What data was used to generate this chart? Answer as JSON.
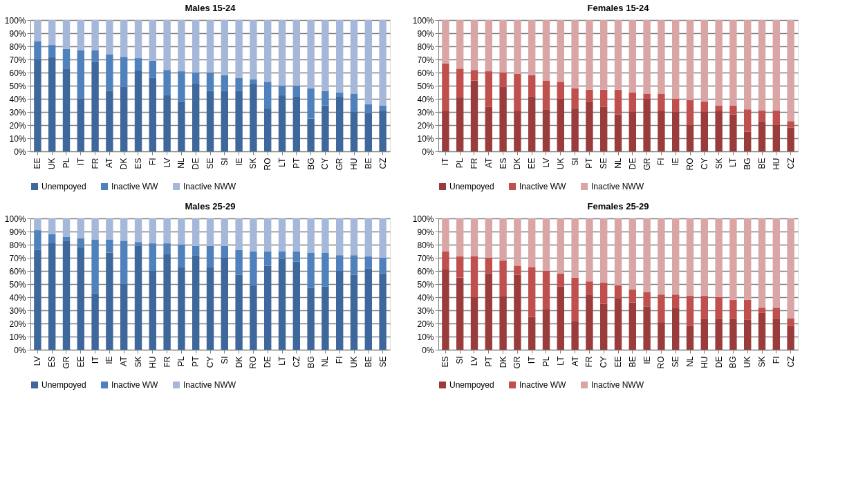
{
  "chart_data": [
    {
      "type": "bar",
      "stacked": true,
      "title": "Males 15-24",
      "categories": [
        "EE",
        "UK",
        "PL",
        "IT",
        "FR",
        "AT",
        "DK",
        "ES",
        "FI",
        "LV",
        "NL",
        "DE",
        "SE",
        "SI",
        "IE",
        "SK",
        "RO",
        "LT",
        "PT",
        "BG",
        "CY",
        "GR",
        "HU",
        "BE",
        "CZ"
      ],
      "series": [
        {
          "name": "Unempoyed",
          "color": "#3e679b",
          "values": [
            70,
            72,
            63,
            40,
            68,
            46,
            49,
            62,
            56,
            43,
            38,
            52,
            46,
            46,
            46,
            52,
            33,
            43,
            42,
            25,
            35,
            42,
            30,
            29,
            31
          ]
        },
        {
          "name": "Inactive WW",
          "color": "#4f81bd",
          "values": [
            14,
            9,
            15,
            37,
            9,
            28,
            23,
            9,
            13,
            19,
            23,
            8,
            14,
            12,
            10,
            3,
            20,
            7,
            8,
            23,
            11,
            3,
            14,
            7,
            4
          ]
        },
        {
          "name": "Inactive NWW",
          "color": "#a6b8d9",
          "values": [
            16,
            19,
            22,
            23,
            23,
            26,
            28,
            29,
            31,
            38,
            39,
            40,
            40,
            42,
            44,
            45,
            47,
            50,
            50,
            52,
            54,
            55,
            56,
            64,
            65
          ]
        }
      ],
      "ylim": [
        0,
        100
      ],
      "yticks": [
        {
          "value": 0,
          "label": "0%"
        },
        {
          "value": 10,
          "label": "10%"
        },
        {
          "value": 20,
          "label": "20%"
        },
        {
          "value": 30,
          "label": "30%"
        },
        {
          "value": 40,
          "label": "40%"
        },
        {
          "value": 50,
          "label": "50%"
        },
        {
          "value": 60,
          "label": "60%"
        },
        {
          "value": 70,
          "label": "70%"
        },
        {
          "value": 80,
          "label": "80%"
        },
        {
          "value": 90,
          "label": "90%"
        },
        {
          "value": 100,
          "label": "100%"
        }
      ],
      "grid": "y",
      "legend": "bottom"
    },
    {
      "type": "bar",
      "stacked": true,
      "title": "Females 15-24",
      "categories": [
        "IT",
        "PL",
        "FR",
        "AT",
        "ES",
        "DK",
        "EE",
        "LV",
        "UK",
        "SI",
        "PT",
        "SE",
        "NL",
        "DE",
        "GR",
        "FI",
        "IE",
        "RO",
        "CY",
        "SK",
        "LT",
        "BG",
        "BE",
        "HU",
        "CZ"
      ],
      "series": [
        {
          "name": "Unempoyed",
          "color": "#9b3c3c",
          "values": [
            31,
            41,
            54,
            34,
            49,
            31,
            42,
            32,
            40,
            33,
            38,
            34,
            28,
            30,
            40,
            31,
            30,
            20,
            30,
            31,
            28,
            15,
            23,
            20,
            18
          ]
        },
        {
          "name": "Inactive WW",
          "color": "#c0504d",
          "values": [
            36,
            22,
            8,
            27,
            11,
            28,
            16,
            22,
            13,
            15,
            9,
            13,
            19,
            15,
            4,
            13,
            10,
            19,
            8,
            4,
            7,
            17,
            8,
            11,
            5
          ]
        },
        {
          "name": "Inactive NWW",
          "color": "#d9a5a5",
          "values": [
            33,
            37,
            38,
            39,
            40,
            41,
            42,
            46,
            47,
            52,
            53,
            53,
            53,
            55,
            56,
            56,
            60,
            61,
            62,
            65,
            65,
            68,
            69,
            69,
            77
          ]
        }
      ],
      "ylim": [
        0,
        100
      ],
      "yticks": [
        {
          "value": 0,
          "label": "0%"
        },
        {
          "value": 10,
          "label": "10%"
        },
        {
          "value": 20,
          "label": "20%"
        },
        {
          "value": 30,
          "label": "30%"
        },
        {
          "value": 40,
          "label": "40%"
        },
        {
          "value": 50,
          "label": "50%"
        },
        {
          "value": 60,
          "label": "60%"
        },
        {
          "value": 70,
          "label": "70%"
        },
        {
          "value": 80,
          "label": "80%"
        },
        {
          "value": 90,
          "label": "90%"
        },
        {
          "value": 100,
          "label": "100%"
        }
      ],
      "grid": "y",
      "legend": "bottom"
    },
    {
      "type": "bar",
      "stacked": true,
      "title": "Males 25-29",
      "categories": [
        "LV",
        "ES",
        "GR",
        "EE",
        "IT",
        "IE",
        "AT",
        "SK",
        "HU",
        "FR",
        "PL",
        "PT",
        "CY",
        "SI",
        "DK",
        "RO",
        "DE",
        "LT",
        "CZ",
        "BG",
        "NL",
        "FI",
        "UK",
        "BE",
        "SE"
      ],
      "series": [
        {
          "name": "Unempoyed",
          "color": "#3e679b",
          "values": [
            76,
            81,
            83,
            78,
            43,
            74,
            50,
            79,
            60,
            73,
            63,
            72,
            63,
            70,
            57,
            49,
            64,
            69,
            67,
            47,
            48,
            60,
            57,
            62,
            58
          ]
        },
        {
          "name": "Inactive WW",
          "color": "#4f81bd",
          "values": [
            15,
            7,
            3,
            7,
            41,
            10,
            33,
            3,
            21,
            8,
            17,
            7,
            16,
            9,
            19,
            26,
            11,
            6,
            8,
            27,
            26,
            12,
            15,
            9,
            12
          ]
        },
        {
          "name": "Inactive NWW",
          "color": "#a6b8d9",
          "values": [
            9,
            12,
            14,
            15,
            16,
            16,
            17,
            18,
            19,
            19,
            20,
            21,
            21,
            21,
            24,
            25,
            25,
            25,
            25,
            26,
            26,
            28,
            28,
            29,
            30
          ]
        }
      ],
      "ylim": [
        0,
        100
      ],
      "yticks": [
        {
          "value": 0,
          "label": "0%"
        },
        {
          "value": 10,
          "label": "10%"
        },
        {
          "value": 20,
          "label": "20%"
        },
        {
          "value": 30,
          "label": "30%"
        },
        {
          "value": 40,
          "label": "40%"
        },
        {
          "value": 50,
          "label": "50%"
        },
        {
          "value": 60,
          "label": "60%"
        },
        {
          "value": 70,
          "label": "70%"
        },
        {
          "value": 80,
          "label": "80%"
        },
        {
          "value": 90,
          "label": "90%"
        },
        {
          "value": 100,
          "label": "100%"
        }
      ],
      "grid": "y",
      "legend": "bottom"
    },
    {
      "type": "bar",
      "stacked": true,
      "title": "Females 25-29",
      "categories": [
        "ES",
        "SI",
        "LV",
        "PT",
        "DK",
        "GR",
        "IT",
        "PL",
        "LT",
        "AT",
        "FR",
        "CY",
        "EE",
        "BE",
        "IE",
        "RO",
        "SE",
        "NL",
        "HU",
        "DE",
        "BG",
        "UK",
        "SK",
        "FI",
        "CZ"
      ],
      "series": [
        {
          "name": "Unempoyed",
          "color": "#9b3c3c",
          "values": [
            61,
            55,
            40,
            58,
            41,
            57,
            25,
            31,
            48,
            22,
            42,
            35,
            39,
            36,
            33,
            21,
            32,
            18,
            24,
            24,
            24,
            23,
            28,
            24,
            18
          ]
        },
        {
          "name": "Inactive WW",
          "color": "#c0504d",
          "values": [
            14,
            16,
            31,
            12,
            27,
            7,
            38,
            29,
            10,
            33,
            10,
            16,
            10,
            10,
            11,
            21,
            10,
            23,
            17,
            16,
            14,
            15,
            4,
            8,
            6
          ]
        },
        {
          "name": "Inactive NWW",
          "color": "#d9a5a5",
          "values": [
            25,
            29,
            29,
            30,
            32,
            36,
            37,
            40,
            42,
            45,
            48,
            49,
            51,
            54,
            56,
            58,
            58,
            59,
            59,
            60,
            62,
            62,
            68,
            68,
            76
          ]
        }
      ],
      "ylim": [
        0,
        100
      ],
      "yticks": [
        {
          "value": 0,
          "label": "0%"
        },
        {
          "value": 10,
          "label": "10%"
        },
        {
          "value": 20,
          "label": "20%"
        },
        {
          "value": 30,
          "label": "30%"
        },
        {
          "value": 40,
          "label": "40%"
        },
        {
          "value": 50,
          "label": "50%"
        },
        {
          "value": 60,
          "label": "60%"
        },
        {
          "value": 70,
          "label": "70%"
        },
        {
          "value": 80,
          "label": "80%"
        },
        {
          "value": 90,
          "label": "90%"
        },
        {
          "value": 100,
          "label": "100%"
        }
      ],
      "grid": "y",
      "legend": "bottom"
    }
  ]
}
